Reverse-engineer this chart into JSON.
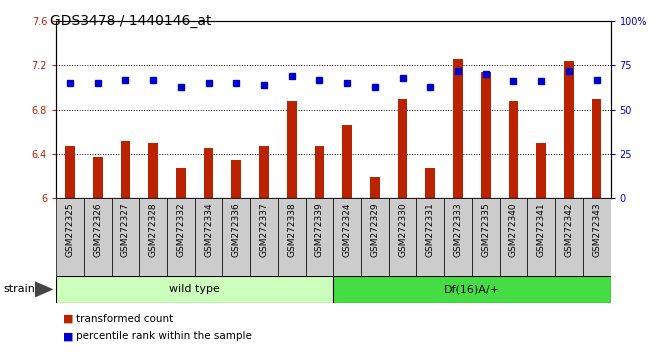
{
  "title": "GDS3478 / 1440146_at",
  "categories": [
    "GSM272325",
    "GSM272326",
    "GSM272327",
    "GSM272328",
    "GSM272332",
    "GSM272334",
    "GSM272336",
    "GSM272337",
    "GSM272338",
    "GSM272339",
    "GSM272324",
    "GSM272329",
    "GSM272330",
    "GSM272331",
    "GSM272333",
    "GSM272335",
    "GSM272340",
    "GSM272341",
    "GSM272342",
    "GSM272343"
  ],
  "bar_values": [
    6.47,
    6.37,
    6.52,
    6.5,
    6.27,
    6.45,
    6.35,
    6.47,
    6.88,
    6.47,
    6.66,
    6.19,
    6.9,
    6.27,
    7.26,
    7.14,
    6.88,
    6.5,
    7.24,
    6.9
  ],
  "percentile_values": [
    65,
    65,
    67,
    67,
    63,
    65,
    65,
    64,
    69,
    67,
    65,
    63,
    68,
    63,
    72,
    70,
    66,
    66,
    72,
    67
  ],
  "ylim_left": [
    6.0,
    7.6
  ],
  "ylim_right": [
    0,
    100
  ],
  "yticks_left": [
    6.0,
    6.4,
    6.8,
    7.2,
    7.6
  ],
  "yticks_right": [
    0,
    25,
    50,
    75,
    100
  ],
  "ytick_labels_left": [
    "6",
    "6.4",
    "6.8",
    "7.2",
    "7.6"
  ],
  "ytick_labels_right": [
    "0",
    "25",
    "50",
    "75",
    "100%"
  ],
  "bar_color": "#bb2200",
  "dot_color": "#0000cc",
  "groups": [
    {
      "label": "wild type",
      "start": 0,
      "end": 10,
      "color": "#ccffbb"
    },
    {
      "label": "Df(16)A/+",
      "start": 10,
      "end": 20,
      "color": "#44dd44"
    }
  ],
  "strain_label": "strain",
  "legend_bar_label": "transformed count",
  "legend_dot_label": "percentile rank within the sample",
  "fig_bg": "#ffffff",
  "plot_bg": "#ffffff",
  "ticklabel_bg": "#cccccc",
  "title_fontsize": 10,
  "axis_fontsize": 7,
  "legend_fontsize": 8,
  "bar_width": 0.35
}
